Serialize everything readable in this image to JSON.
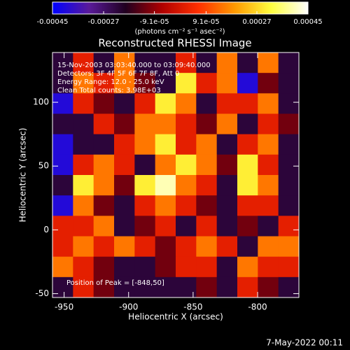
{
  "chart_data": {
    "type": "heatmap",
    "title": "Reconstructed RHESSI Image",
    "x_label": "Heliocentric X (arcsec)",
    "y_label": "Heliocentric Y (arcsec)",
    "annotations": [
      "15-Nov-2003 03:03:40.000 to 03:09:40.000",
      "Detectors: 3F 4F 5F 6F 7F 8F, Att 0",
      "Energy Range: 12.0 - 25.0 keV",
      "Clean    Total counts: 3.98E+03"
    ],
    "peak_label": "Position of Peak = [-848,50]",
    "timestamp": "7-May-2022 00:11",
    "xlim": [
      -959,
      -768
    ],
    "ylim": [
      -53,
      139
    ],
    "xticks": [
      -950,
      -900,
      -850,
      -800
    ],
    "yticks": [
      -50,
      0,
      50,
      100
    ],
    "colorbar": {
      "label": "(photons cm⁻² s⁻¹ asec⁻²)",
      "lim": [
        -0.00045,
        0.00045
      ],
      "ticks": [
        -0.00045,
        -0.00027,
        {
          "value": -9.1e-05,
          "label": "-9.1e-05"
        },
        {
          "value": 9.1e-05,
          "label": "9.1e-05"
        },
        0.00027,
        0.00045
      ],
      "colormap": [
        "#0000ff",
        "#5a1a9a",
        "#200020",
        "#b00000",
        "#ff3000",
        "#ff9a00",
        "#ffff40",
        "#ffffff"
      ]
    },
    "z": [
      [
        -0.00022,
        2e-05,
        -0.00022,
        0.00015,
        -0.00022,
        -0.00022,
        2e-05,
        -0.00022,
        0.00015,
        -0.00022,
        0.00015,
        -0.00022
      ],
      [
        -0.00022,
        0.00015,
        2e-05,
        0.00015,
        -0.00012,
        -0.00022,
        0.0003,
        2e-05,
        0.00015,
        -0.0004,
        -0.00012,
        -0.00022
      ],
      [
        -0.0004,
        2e-05,
        -0.00012,
        -0.00022,
        2e-05,
        0.0003,
        0.00015,
        -0.00022,
        2e-05,
        2e-05,
        0.00015,
        -0.00022
      ],
      [
        -0.00022,
        -0.00022,
        2e-05,
        -0.00012,
        0.00015,
        0.00015,
        2e-05,
        -0.00012,
        0.00015,
        -0.00022,
        2e-05,
        -0.00012
      ],
      [
        -0.0004,
        -0.00022,
        -0.00022,
        2e-05,
        0.00015,
        0.0003,
        2e-05,
        0.00015,
        -0.00022,
        2e-05,
        0.00015,
        -0.00022
      ],
      [
        -0.0004,
        2e-05,
        0.00015,
        2e-05,
        -0.00022,
        0.00015,
        0.0003,
        0.00015,
        -0.00012,
        0.0003,
        2e-05,
        -0.00022
      ],
      [
        -0.00022,
        0.0003,
        0.00015,
        -0.00012,
        0.0003,
        0.0004,
        0.00015,
        2e-05,
        -0.00022,
        0.0003,
        0.00015,
        -0.00022
      ],
      [
        -0.0004,
        0.00015,
        -0.00012,
        -0.00022,
        2e-05,
        0.00015,
        2e-05,
        -0.00012,
        -0.00022,
        2e-05,
        2e-05,
        -0.00022
      ],
      [
        2e-05,
        2e-05,
        0.00015,
        -0.00022,
        -0.00012,
        2e-05,
        -0.00022,
        2e-05,
        -0.00022,
        -0.00012,
        -0.00022,
        2e-05
      ],
      [
        2e-05,
        0.00015,
        2e-05,
        0.00015,
        2e-05,
        -0.00012,
        2e-05,
        0.00015,
        2e-05,
        -0.00022,
        0.00015,
        0.00015
      ],
      [
        0.00015,
        2e-05,
        -0.00012,
        -0.00022,
        -0.00022,
        -0.00012,
        2e-05,
        2e-05,
        -0.00022,
        0.00015,
        2e-05,
        2e-05
      ],
      [
        -0.00022,
        2e-05,
        -0.00012,
        -0.00022,
        -0.00022,
        -0.00022,
        -0.00022,
        -0.00012,
        -0.00022,
        2e-05,
        -0.00012,
        -0.00022
      ]
    ]
  }
}
